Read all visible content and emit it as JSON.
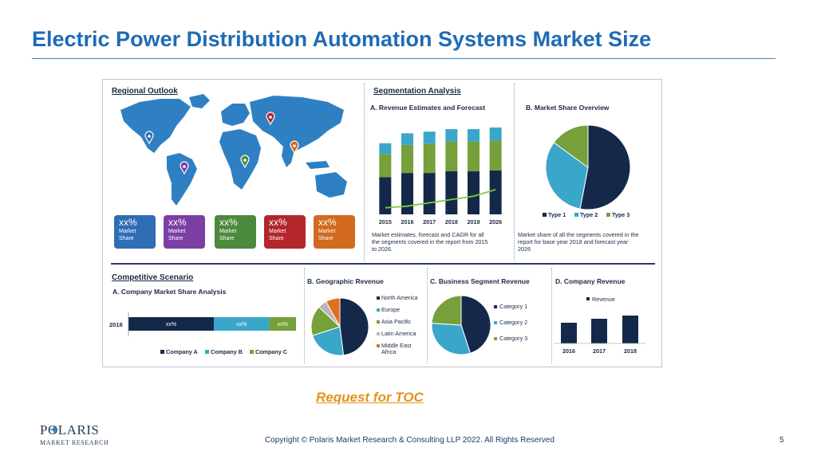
{
  "slide": {
    "title": "Electric Power Distribution Automation Systems Market Size",
    "toc_link": "Request for TOC",
    "copyright": "Copyright © Polaris Market Research & Consulting LLP 2022. All Rights Reserved",
    "page_number": "5",
    "logo_name": "POLARIS",
    "logo_subtitle": "MARKET RESEARCH"
  },
  "regional": {
    "title": "Regional Outlook",
    "boxes": [
      {
        "value": "xx%",
        "label1": "Market",
        "label2": "Share",
        "color": "#2f6db5"
      },
      {
        "value": "xx%",
        "label1": "Market",
        "label2": "Share",
        "color": "#7b3fa4"
      },
      {
        "value": "xx%",
        "label1": "Market",
        "label2": "Share",
        "color": "#4b8a3c"
      },
      {
        "value": "xx%",
        "label1": "Market",
        "label2": "Share",
        "color": "#b3262b"
      },
      {
        "value": "xx%",
        "label1": "Market",
        "label2": "Share",
        "color": "#d2691f"
      }
    ],
    "pin_colors": [
      "#2f6db5",
      "#7b3fa4",
      "#4b8a3c",
      "#b3262b",
      "#d2691f"
    ],
    "map_color": "#2f80c2"
  },
  "segmentation": {
    "title": "Segmentation Analysis",
    "a_title": "A. Revenue Estimates and Forecast",
    "a_caption": [
      "Market estimates, forecast and CAGR for all",
      "the segments covered in the report from 2015",
      "to 2026."
    ],
    "b_title": "B. Market Share Overview",
    "b_caption": [
      "Market share of all the segments covered in the",
      "report for base year 2018 and forecast year",
      "2026"
    ]
  },
  "competitive": {
    "title": "Competitive Scenario",
    "a_title": "A. Company Market Share Analysis",
    "bar_label": "xx%"
  },
  "geographic": {
    "title": "B. Geographic Revenue"
  },
  "business": {
    "title": "C. Business Segment Revenue"
  },
  "company": {
    "title": "D. Company Revenue"
  },
  "colors": {
    "navy": "#14294a",
    "teal": "#3aa6c9",
    "olive": "#75a03a",
    "gray": "#b7b7b7",
    "orange": "#e0701e",
    "line": "#7ecb3a"
  },
  "chart_data": [
    {
      "type": "bar",
      "title": "A. Revenue Estimates and Forecast",
      "stacked": true,
      "categories": [
        "2015",
        "2016",
        "2017",
        "2018",
        "2019",
        "2026"
      ],
      "series": [
        {
          "values": [
            45,
            50,
            50,
            52,
            52,
            53
          ],
          "color": "#14294a"
        },
        {
          "values": [
            28,
            34,
            35,
            36,
            36,
            36
          ],
          "color": "#75a03a"
        },
        {
          "values": [
            13,
            14,
            15,
            15,
            15,
            16
          ],
          "color": "#3aa6c9"
        }
      ],
      "trend": [
        6,
        8,
        12,
        16,
        20,
        28
      ],
      "ylim": [
        0,
        105
      ],
      "grid": false
    },
    {
      "type": "pie",
      "title": "B. Market Share Overview",
      "labels": [
        "Type 1",
        "Type 2",
        "Type 3"
      ],
      "values": [
        53,
        32,
        15
      ],
      "colors": [
        "#14294a",
        "#3aa6c9",
        "#75a03a"
      ],
      "legend": "bottom"
    },
    {
      "type": "bar",
      "orientation": "horizontal",
      "stacked": true,
      "title": "A. Company Market Share Analysis",
      "categories": [
        "2018"
      ],
      "series": [
        {
          "name": "Company A",
          "values": [
            51
          ],
          "color": "#14294a"
        },
        {
          "name": "Company B",
          "values": [
            33
          ],
          "color": "#3aa6c9"
        },
        {
          "name": "Company C",
          "values": [
            16
          ],
          "color": "#75a03a"
        }
      ],
      "data_labels": [
        "xx%",
        "xx%",
        "xx%"
      ],
      "legend": "bottom"
    },
    {
      "type": "pie",
      "title": "B. Geographic Revenue",
      "labels": [
        "North America",
        "Europe",
        "Asia Pacific",
        "Latin America",
        "Middle East Africa"
      ],
      "legend_lines": [
        [
          "North America"
        ],
        [
          "Europe"
        ],
        [
          "Asia Pacific"
        ],
        [
          "Latin America"
        ],
        [
          "Middle East",
          "Africa"
        ]
      ],
      "values": [
        48,
        22,
        17,
        5,
        8
      ],
      "colors": [
        "#14294a",
        "#3aa6c9",
        "#75a03a",
        "#b7b7b7",
        "#e0701e"
      ],
      "legend": "right"
    },
    {
      "type": "pie",
      "title": "C. Business Segment Revenue",
      "labels": [
        "Category 1",
        "Category 2",
        "Category 3"
      ],
      "values": [
        45,
        31,
        24
      ],
      "colors": [
        "#14294a",
        "#3aa6c9",
        "#75a03a"
      ],
      "legend": "right"
    },
    {
      "type": "bar",
      "title": "D. Company Revenue",
      "categories": [
        "2016",
        "2017",
        "2018"
      ],
      "series": [
        {
          "name": "Revenue",
          "values": [
            26,
            31,
            35
          ],
          "color": "#14294a"
        }
      ],
      "ylim": [
        0,
        60
      ],
      "legend": "top"
    }
  ]
}
